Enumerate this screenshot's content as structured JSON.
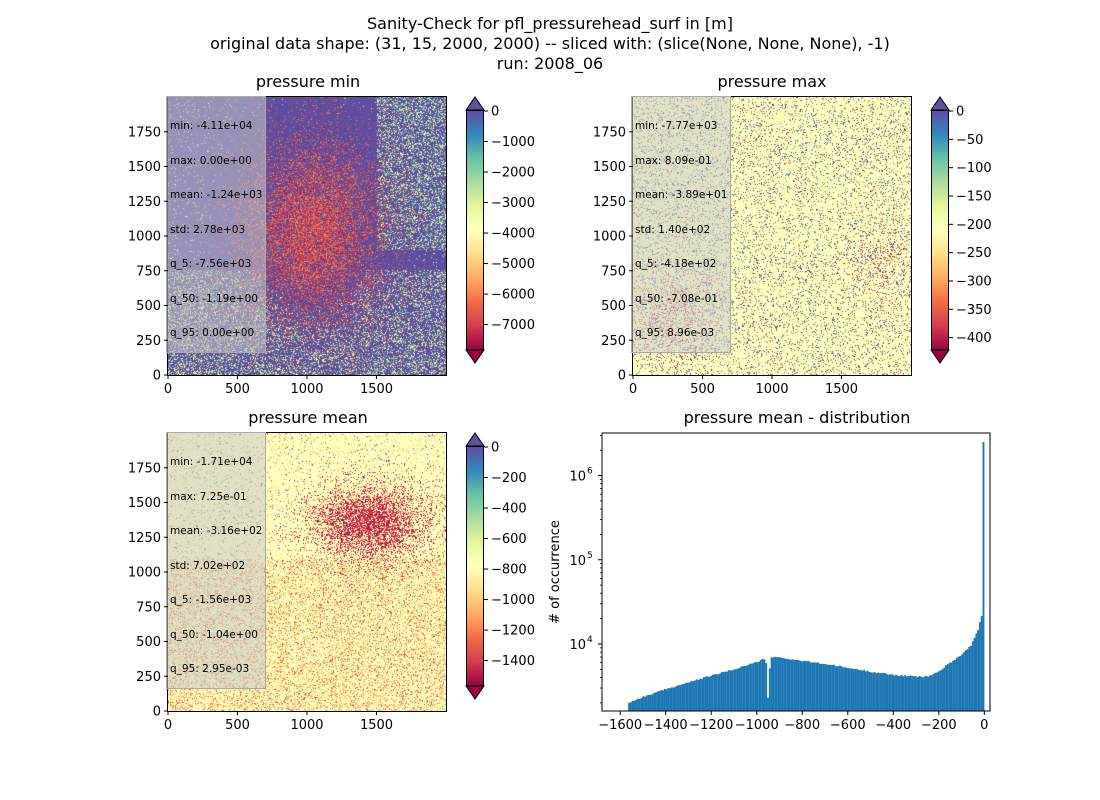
{
  "figure": {
    "title_lines": [
      "Sanity-Check for pfl_pressurehead_surf in [m]",
      "original data shape: (31, 15, 2000, 2000) -- sliced with: (slice(None, None, None), -1)",
      "run: 2008_06"
    ]
  },
  "chart_data": [
    {
      "type": "heatmap",
      "title": "pressure min",
      "xticks": [
        "0",
        "500",
        "1000",
        "1500"
      ],
      "yticks": [
        "0",
        "250",
        "500",
        "750",
        "1000",
        "1250",
        "1500",
        "1750"
      ],
      "xlim": [
        0,
        2000
      ],
      "ylim": [
        0,
        2000
      ],
      "colorbar": {
        "ticks": [
          "0",
          "−1000",
          "−2000",
          "−3000",
          "−4000",
          "−5000",
          "−6000",
          "−7000"
        ],
        "range": [
          -7800,
          0
        ],
        "colormap": "Spectral",
        "extend": "both"
      },
      "background_color": "#5e4fa2",
      "stats": [
        "min: -4.11e+04",
        "max: 0.00e+00",
        "mean: -1.24e+03",
        "std: 2.78e+03",
        "q_5: -7.56e+03",
        "q_50: -1.19e+00",
        "q_95: 0.00e+00"
      ]
    },
    {
      "type": "heatmap",
      "title": "pressure max",
      "xticks": [
        "0",
        "500",
        "1000",
        "1500"
      ],
      "yticks": [
        "0",
        "250",
        "500",
        "750",
        "1000",
        "1250",
        "1500",
        "1750"
      ],
      "xlim": [
        0,
        2000
      ],
      "ylim": [
        0,
        2000
      ],
      "colorbar": {
        "ticks": [
          "0",
          "−50",
          "−100",
          "−150",
          "−200",
          "−250",
          "−300",
          "−350",
          "−400"
        ],
        "range": [
          -420,
          0
        ],
        "colormap": "Spectral",
        "extend": "both"
      },
      "background_color": "#fefebd",
      "stats": [
        "min: -7.77e+03",
        "max: 8.09e-01",
        "mean: -3.89e+01",
        "std: 1.40e+02",
        "q_5: -4.18e+02",
        "q_50: -7.08e-01",
        "q_95: 8.96e-03"
      ]
    },
    {
      "type": "heatmap",
      "title": "pressure mean",
      "xticks": [
        "0",
        "500",
        "1000",
        "1500"
      ],
      "yticks": [
        "0",
        "250",
        "500",
        "750",
        "1000",
        "1250",
        "1500",
        "1750"
      ],
      "xlim": [
        0,
        2000
      ],
      "ylim": [
        0,
        2000
      ],
      "colorbar": {
        "ticks": [
          "0",
          "−200",
          "−400",
          "−600",
          "−800",
          "−1000",
          "−1200",
          "−1400"
        ],
        "range": [
          -1560,
          0
        ],
        "colormap": "Spectral",
        "extend": "both"
      },
      "background_color": "#fefebd",
      "stats": [
        "min: -1.71e+04",
        "max: 7.25e-01",
        "mean: -3.16e+02",
        "std: 7.02e+02",
        "q_5: -1.56e+03",
        "q_50: -1.04e+00",
        "q_95: 2.95e-03"
      ]
    },
    {
      "type": "bar",
      "title": "pressure mean - distribution",
      "ylabel": "# of occurrence",
      "xlabel": "",
      "yscale": "log",
      "color": "#1f77b4",
      "xticks": [
        "−1600",
        "−1400",
        "−1200",
        "−1000",
        "−800",
        "−600",
        "−400",
        "−200",
        "0"
      ],
      "ytick_bases": [
        "10",
        "10",
        "10"
      ],
      "ytick_exponents": [
        "4",
        "5",
        "6"
      ],
      "xlim": [
        -1680,
        25
      ],
      "ylim": [
        1600,
        3200000
      ],
      "bin_edges_range": [
        -1565,
        0
      ],
      "profile_x": [
        -1565,
        -1500,
        -1400,
        -1300,
        -1200,
        -1100,
        -1000,
        -960,
        -950,
        -940,
        -900,
        -800,
        -700,
        -600,
        -500,
        -400,
        -300,
        -250,
        -200,
        -150,
        -100,
        -60,
        -30,
        -15,
        -5,
        -1,
        0
      ],
      "profile_y": [
        2000,
        2350,
        2900,
        3500,
        4200,
        5000,
        6100,
        6800,
        2300,
        7000,
        6900,
        6300,
        5800,
        5200,
        4700,
        4300,
        4100,
        4100,
        4700,
        6000,
        7500,
        9500,
        14000,
        20000,
        24000,
        2500000,
        2500000
      ]
    }
  ]
}
